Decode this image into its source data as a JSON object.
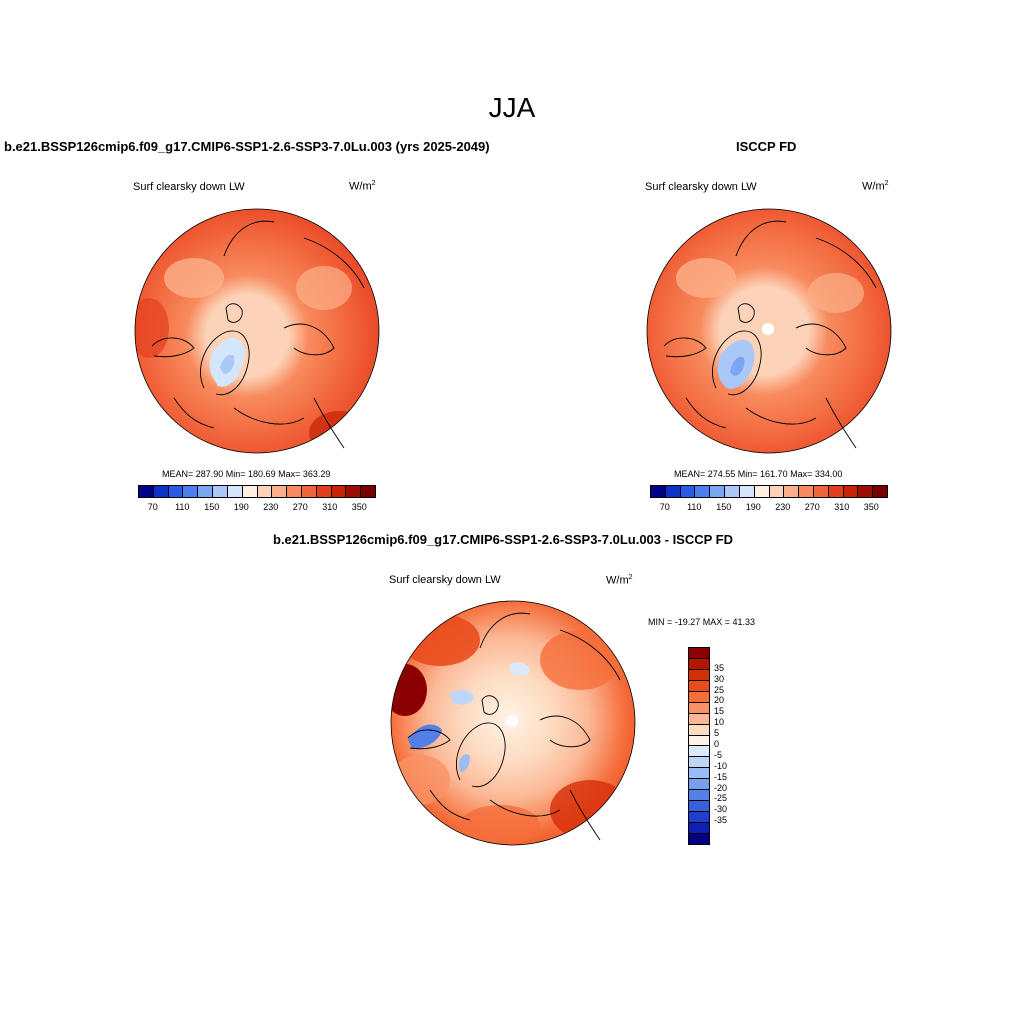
{
  "season": "JJA",
  "panels": {
    "left": {
      "title": "b.e21.BSSP126cmip6.f09_g17.CMIP6-SSP1-2.6-SSP3-7.0Lu.003 (yrs 2025-2049)",
      "variable": "Surf clearsky down LW",
      "units_base": "W/m",
      "units_exp": "2",
      "stats": "MEAN= 287.90  Min= 180.69  Max= 363.29"
    },
    "right": {
      "title": "ISCCP FD",
      "variable": "Surf clearsky down LW",
      "units_base": "W/m",
      "units_exp": "2",
      "stats": "MEAN= 274.55  Min= 161.70  Max= 334.00"
    },
    "diff": {
      "title": "b.e21.BSSP126cmip6.f09_g17.CMIP6-SSP1-2.6-SSP3-7.0Lu.003 - ISCCP FD",
      "variable": "Surf clearsky down LW",
      "units_base": "W/m",
      "units_exp": "2",
      "stats": "MIN = -19.27 MAX =  41.33"
    }
  },
  "colorbar_abs": {
    "colors": [
      "#00008b",
      "#0d33c4",
      "#2a5be6",
      "#4a7fef",
      "#7aa6f4",
      "#a9c8f7",
      "#d4e6fb",
      "#fdf0e1",
      "#fcd3b8",
      "#fbb08a",
      "#f88b5e",
      "#f2653c",
      "#e53e1f",
      "#c82208",
      "#9d0d00",
      "#7a0000"
    ],
    "ticks": [
      "70",
      "110",
      "150",
      "190",
      "230",
      "270",
      "310",
      "350"
    ]
  },
  "colorbar_diff": {
    "colors": [
      "#8b0000",
      "#b81500",
      "#d72e0a",
      "#ea4c1c",
      "#f56e3b",
      "#fa9266",
      "#fcb896",
      "#fddcc2",
      "#fef3e6",
      "#dce9fb",
      "#bcd5f8",
      "#99bdf4",
      "#769fee",
      "#537fe6",
      "#3660dc",
      "#1f3fcf",
      "#0f21b4",
      "#000080"
    ],
    "ticks": [
      "35",
      "30",
      "25",
      "20",
      "15",
      "10",
      "5",
      "0",
      "-5",
      "-10",
      "-15",
      "-20",
      "-25",
      "-30",
      "-35"
    ]
  }
}
